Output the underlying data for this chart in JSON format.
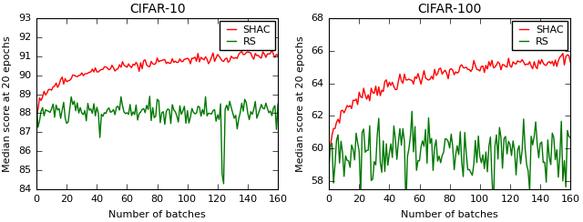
{
  "cifar10": {
    "title": "CIFAR-10",
    "ylabel": "Median score at 20 epochs",
    "xlabel": "Number of batches",
    "ylim": [
      84,
      93
    ],
    "yticks": [
      84,
      85,
      86,
      87,
      88,
      89,
      90,
      91,
      92,
      93
    ],
    "xlim": [
      0,
      160
    ],
    "xticks": [
      0,
      20,
      40,
      60,
      80,
      100,
      120,
      140,
      160
    ],
    "shac_start": 87.8,
    "shac_end": 91.1,
    "rs_mean": 88.1,
    "rs_std": 0.32,
    "rs_spike_x": 124,
    "rs_spike_val": 84.3
  },
  "cifar100": {
    "title": "CIFAR-100",
    "ylabel": "Median score at 20 epochs",
    "xlabel": "Number of batches",
    "ylim": [
      57.5,
      68
    ],
    "yticks": [
      58,
      60,
      62,
      64,
      66,
      68
    ],
    "xlim": [
      0,
      160
    ],
    "xticks": [
      0,
      20,
      40,
      60,
      80,
      100,
      120,
      140,
      160
    ],
    "shac_start": 59.5,
    "shac_end": 65.5,
    "rs_mean": 60.0,
    "rs_std": 0.9
  },
  "shac_color": "#ff0000",
  "rs_color": "#007700",
  "legend_labels": [
    "SHAC",
    "RS"
  ],
  "line_width": 1.0,
  "font_size": 8,
  "title_font_size": 10
}
